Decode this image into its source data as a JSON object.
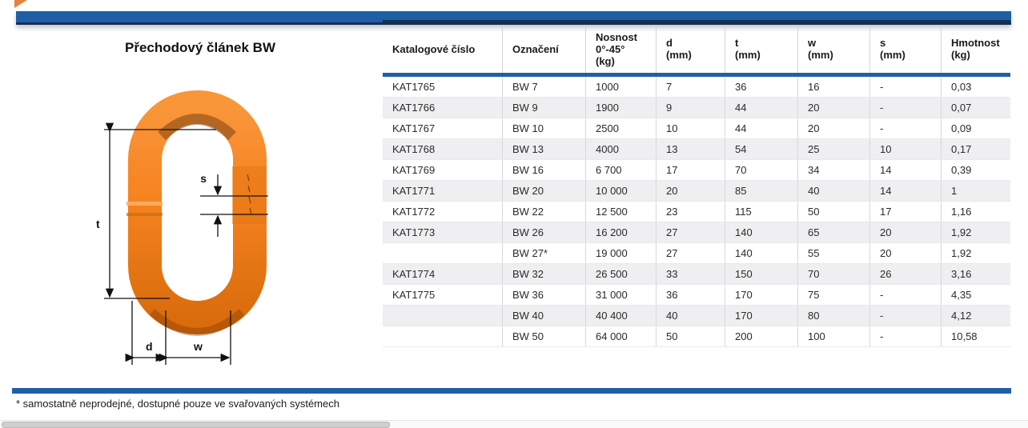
{
  "page": {
    "title": "Přechodový článek BW",
    "footnote": "* samostatně neprodejné, dostupné pouze ve svařovaných systémech"
  },
  "colors": {
    "accent_blue": "#1f5fa6",
    "dark_navy": "#16304f",
    "link_orange": "#f5821f",
    "alt_row": "#efeff1"
  },
  "illustration": {
    "description": "orange oblong master link with dimension arrows",
    "labels": {
      "t": "t",
      "s": "s",
      "d": "d",
      "w": "w"
    }
  },
  "table": {
    "headers": [
      "Katalogové číslo",
      "Označení",
      "Nosnost\n0°-45°\n(kg)",
      "d\n(mm)",
      "t\n(mm)",
      "w\n(mm)",
      "s\n(mm)",
      "Hmotnost\n(kg)"
    ],
    "rows": [
      [
        "KAT1765",
        "BW 7",
        "1000",
        "7",
        "36",
        "16",
        "-",
        "0,03"
      ],
      [
        "KAT1766",
        "BW 9",
        "1900",
        "9",
        "44",
        "20",
        "-",
        "0,07"
      ],
      [
        "KAT1767",
        "BW 10",
        "2500",
        "10",
        "44",
        "20",
        "-",
        "0,09"
      ],
      [
        "KAT1768",
        "BW 13",
        "4000",
        "13",
        "54",
        "25",
        "10",
        "0,17"
      ],
      [
        "KAT1769",
        "BW 16",
        "6 700",
        "17",
        "70",
        "34",
        "14",
        "0,39"
      ],
      [
        "KAT1771",
        "BW 20",
        "10 000",
        "20",
        "85",
        "40",
        "14",
        "1"
      ],
      [
        "KAT1772",
        "BW 22",
        "12 500",
        "23",
        "115",
        "50",
        "17",
        "1,16"
      ],
      [
        "KAT1773",
        "BW 26",
        "16 200",
        "27",
        "140",
        "65",
        "20",
        "1,92"
      ],
      [
        "",
        "BW 27*",
        "19 000",
        "27",
        "140",
        "55",
        "20",
        "1,92"
      ],
      [
        "KAT1774",
        "BW 32",
        "26 500",
        "33",
        "150",
        "70",
        "26",
        "3,16"
      ],
      [
        "KAT1775",
        "BW 36",
        "31 000",
        "36",
        "170",
        "75",
        "-",
        "4,35"
      ],
      [
        "",
        "BW 40",
        "40 400",
        "40",
        "170",
        "80",
        "-",
        "4,12"
      ],
      [
        "",
        "BW 50",
        "64 000",
        "50",
        "200",
        "100",
        "-",
        "10,58"
      ]
    ]
  }
}
